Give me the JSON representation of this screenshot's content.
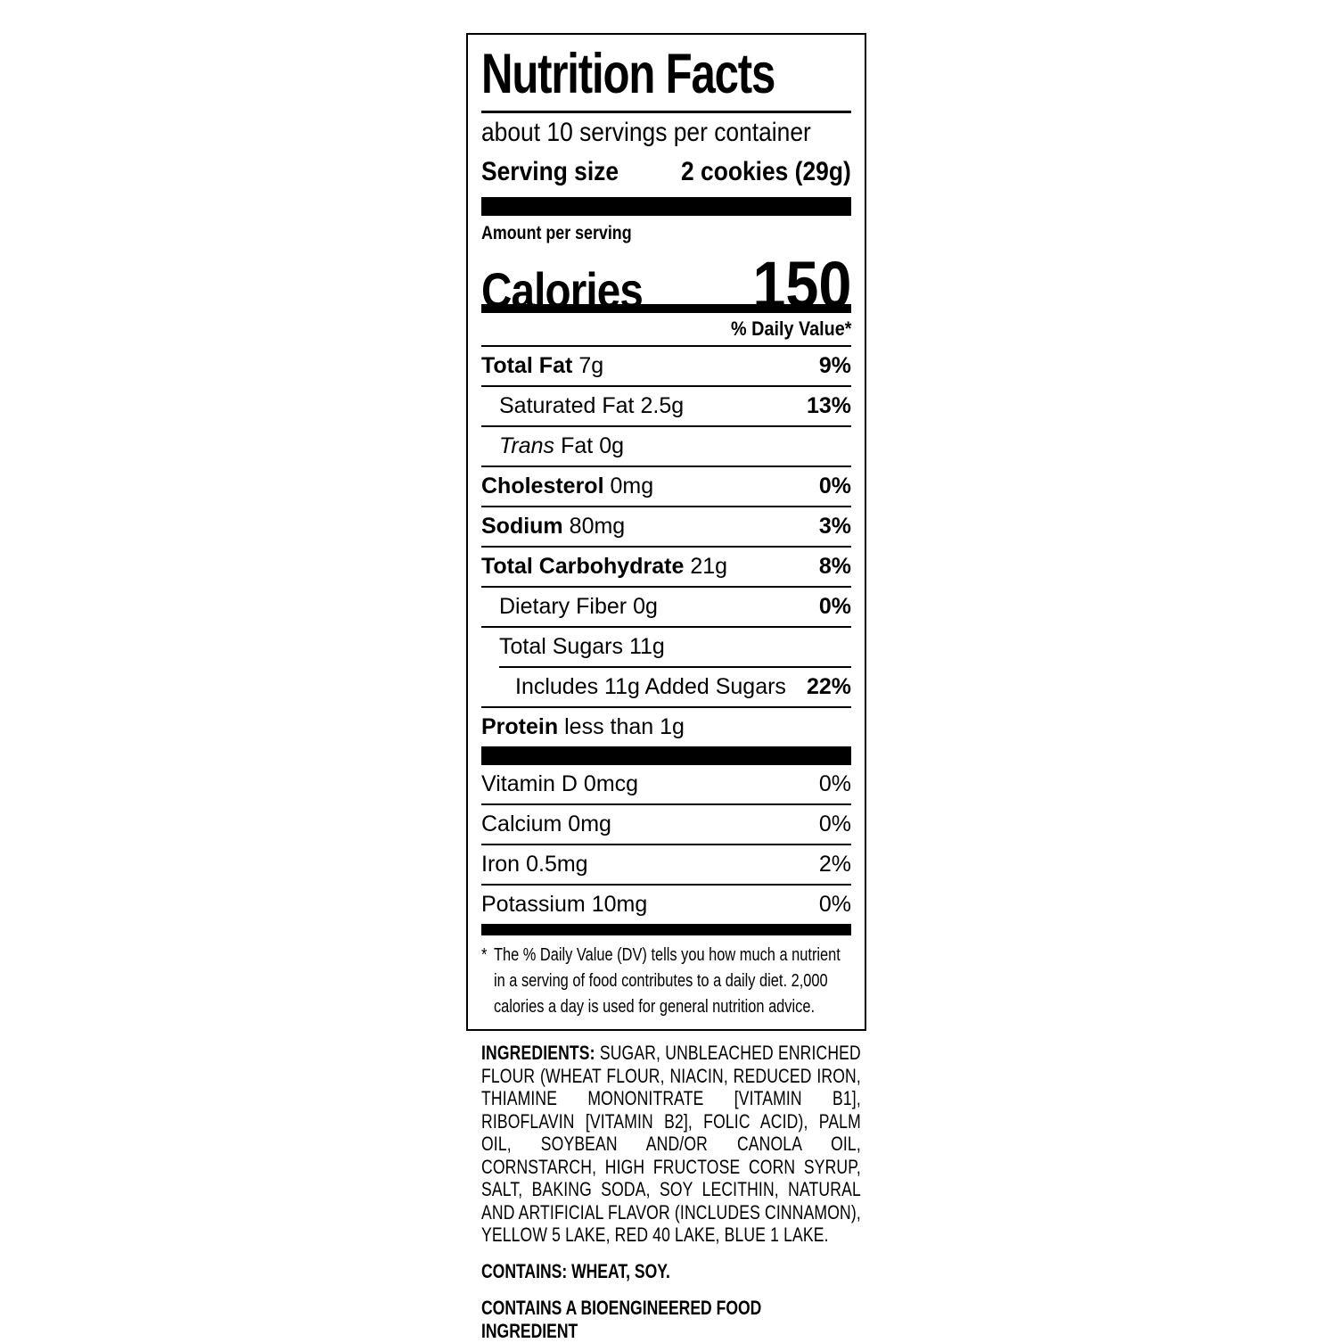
{
  "label": {
    "title": "Nutrition Facts",
    "servings_per_container": "about 10 servings per container",
    "serving_size_label": "Serving size",
    "serving_size_value": "2 cookies (29g)",
    "amount_per_serving": "Amount per serving",
    "calories_label": "Calories",
    "calories_value": "150",
    "daily_value_header": "% Daily Value*",
    "nutrients": [
      {
        "name": "Total Fat",
        "amount": "7g",
        "dv": "9%"
      },
      {
        "name": "Saturated Fat",
        "amount": "2.5g",
        "dv": "13%"
      },
      {
        "name": "Trans Fat",
        "name_italic": "Trans",
        "name_rest": "Fat",
        "amount": "0g",
        "dv": ""
      },
      {
        "name": "Cholesterol",
        "amount": "0mg",
        "dv": "0%"
      },
      {
        "name": "Sodium",
        "amount": "80mg",
        "dv": "3%"
      },
      {
        "name": "Total Carbohydrate",
        "amount": "21g",
        "dv": "8%"
      },
      {
        "name": "Dietary Fiber",
        "amount": "0g",
        "dv": "0%"
      },
      {
        "name": "Total Sugars",
        "amount": "11g",
        "dv": ""
      },
      {
        "name": "Includes 11g Added Sugars",
        "amount": "",
        "dv": "22%"
      },
      {
        "name": "Protein",
        "amount": "less than 1g",
        "dv": ""
      }
    ],
    "vitamins": [
      {
        "name": "Vitamin D",
        "amount": "0mcg",
        "dv": "0%"
      },
      {
        "name": "Calcium",
        "amount": "0mg",
        "dv": "0%"
      },
      {
        "name": "Iron",
        "amount": "0.5mg",
        "dv": "2%"
      },
      {
        "name": "Potassium",
        "amount": "10mg",
        "dv": "0%"
      }
    ],
    "footnote_marker": "*",
    "footnote": "The % Daily Value (DV) tells you how much a nutrient in a serving of food contributes to a daily diet. 2,000 calories a day is used for general nutrition advice."
  },
  "ingredients": {
    "label": "INGREDIENTS:",
    "text": "SUGAR, UNBLEACHED ENRICHED FLOUR (WHEAT FLOUR, NIACIN, REDUCED IRON, THIAMINE MONONITRATE [VITAMIN B1], RIBOFLAVIN [VITAMIN B2], FOLIC ACID), PALM OIL, SOYBEAN AND/OR CANOLA OIL, CORNSTARCH, HIGH FRUCTOSE CORN SYRUP, SALT, BAKING SODA, SOY LECITHIN, NATURAL AND ARTIFICIAL FLAVOR (INCLUDES CINNAMON), YELLOW 5 LAKE, RED 40 LAKE, BLUE 1 LAKE.",
    "contains": "CONTAINS: WHEAT, SOY.",
    "bioengineered": "CONTAINS A BIOENGINEERED FOOD INGREDIENT"
  },
  "colors": {
    "text": "#000000",
    "background": "#ffffff"
  }
}
